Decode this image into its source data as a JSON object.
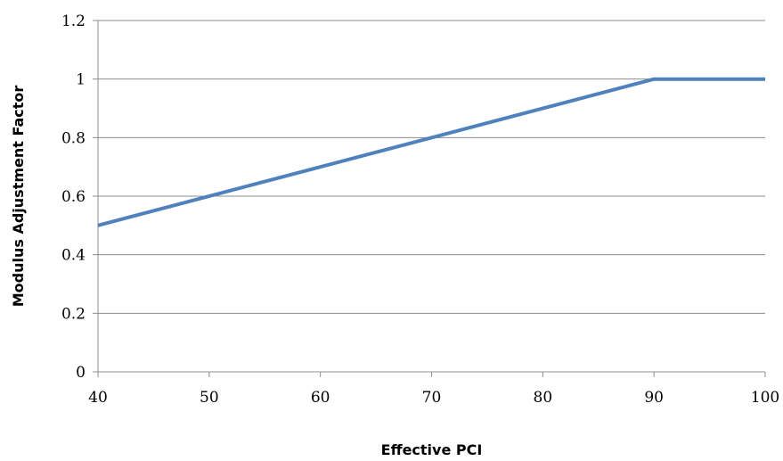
{
  "chart_data": {
    "type": "line",
    "title": "",
    "xlabel": "Effective PCI",
    "ylabel": "Modulus Adjustment Factor",
    "xlim": [
      40,
      100
    ],
    "ylim": [
      0,
      1.2
    ],
    "x_ticks": [
      "40",
      "50",
      "60",
      "70",
      "80",
      "90",
      "100"
    ],
    "y_ticks": [
      "0",
      "0.2",
      "0.4",
      "0.6",
      "0.8",
      "1",
      "1.2"
    ],
    "grid": "horizontal",
    "legend": "none",
    "series": [
      {
        "x": [
          40,
          90,
          100
        ],
        "y": [
          0.5,
          1.0,
          1.0
        ],
        "color": "#4f81bd"
      }
    ]
  }
}
